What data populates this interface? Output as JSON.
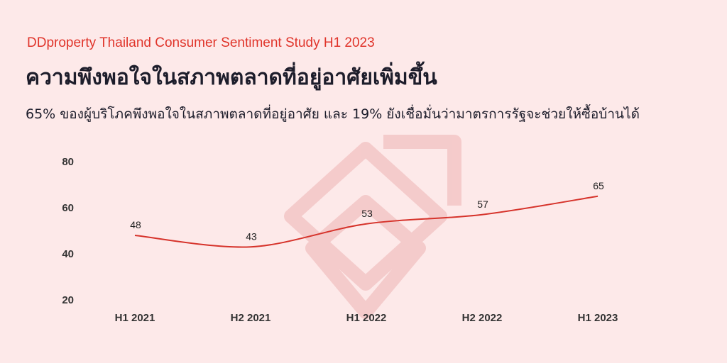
{
  "header": {
    "kicker": "DDproperty Thailand Consumer Sentiment Study H1 2023",
    "title": "ความพึงพอใจในสภาพตลาดที่อยู่อาศัยเพิ่มขึ้น",
    "subtitle": "65% ของผู้บริโภคพึงพอใจในสภาพตลาดที่อยู่อาศัย และ 19% ยังเชื่อมั่นว่ามาตรการรัฐจะช่วยให้ซื้อบ้านได้"
  },
  "colors": {
    "background": "#fde9e9",
    "accent": "#e0342a",
    "line": "#d6332b",
    "watermark": "#f3c6c6"
  },
  "watermark_icon": "ddproperty-logo-icon",
  "chart_data": {
    "type": "line",
    "categories": [
      "H1 2021",
      "H2 2021",
      "H1 2022",
      "H2 2022",
      "H1 2023"
    ],
    "values": [
      48,
      43,
      53,
      57,
      65
    ],
    "data_labels": [
      "48",
      "43",
      "53",
      "57",
      "65"
    ],
    "ylim": [
      20,
      80
    ],
    "yticks": [
      20,
      40,
      60,
      80
    ],
    "grid": false,
    "title": "",
    "xlabel": "",
    "ylabel": ""
  }
}
